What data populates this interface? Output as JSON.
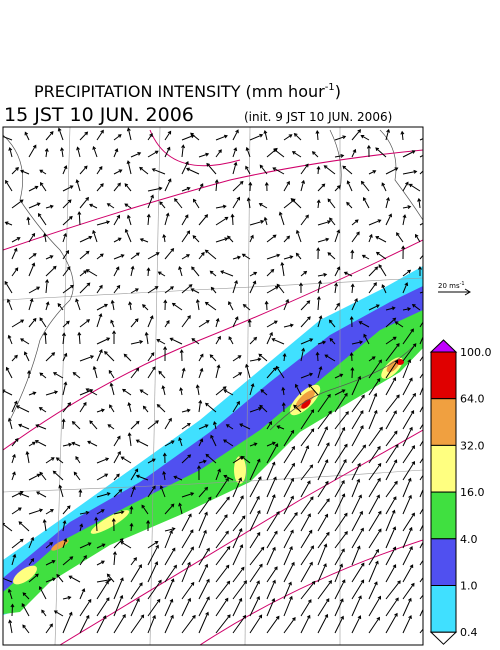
{
  "title": {
    "text": "PRECIPITATION INTENSITY (mm hour",
    "exponent": "-1",
    "close": ")"
  },
  "valid_time": "15 JST 10 JUN. 2006",
  "init_time": "(init. 9 JST 10 JUN. 2006)",
  "wind_scale": {
    "text": "20 ms",
    "exponent": "-1"
  },
  "colorbar": {
    "labels": [
      "100.0",
      "64.0",
      "32.0",
      "16.0",
      "4.0",
      "1.0",
      "0.4"
    ],
    "colors": [
      "#e00000",
      "#f0a040",
      "#ffff80",
      "#40e040",
      "#5050f0",
      "#40e0ff"
    ],
    "over_color": "#c000ff",
    "under_color": "#ffffff"
  }
}
